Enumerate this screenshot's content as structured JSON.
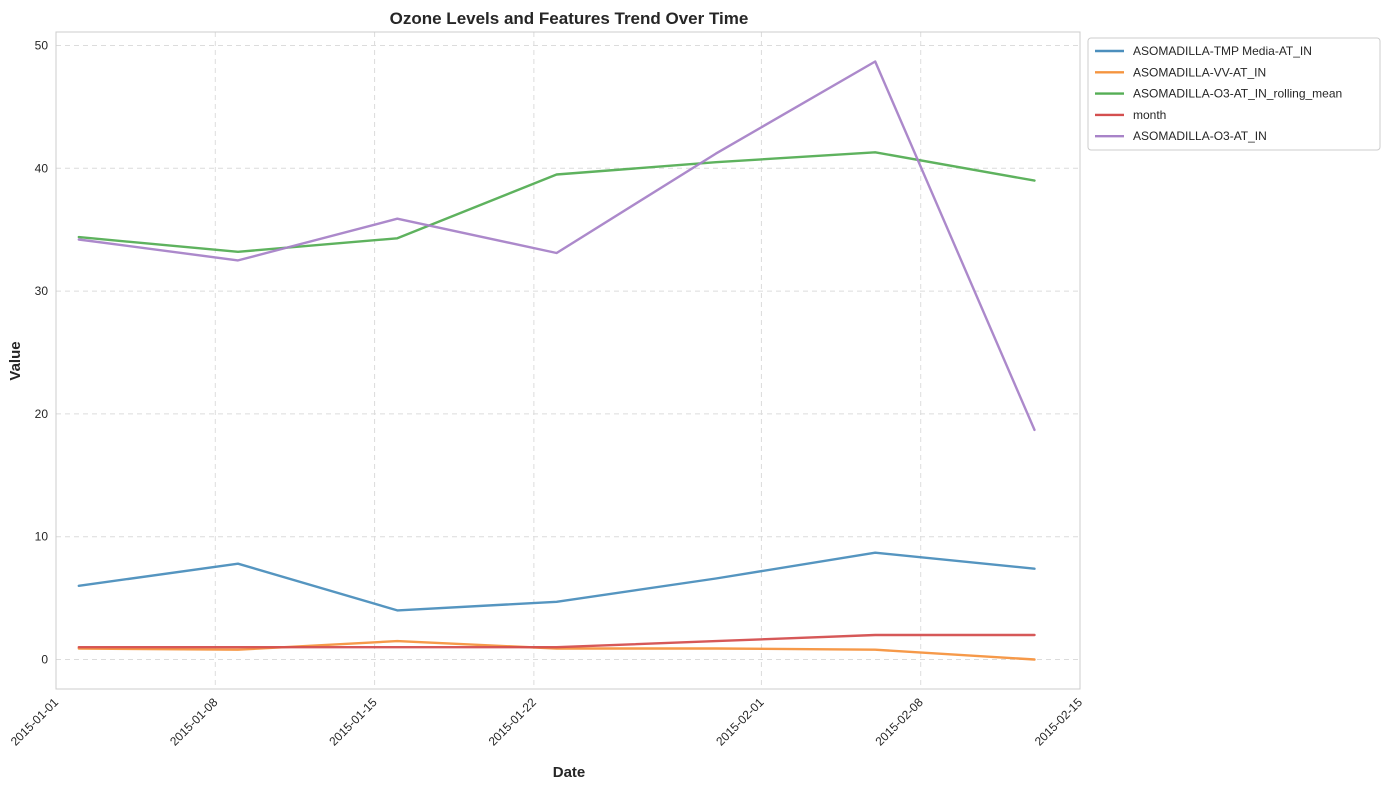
{
  "chart_data": {
    "type": "line",
    "title": "Ozone Levels and Features Trend Over Time",
    "xlabel": "Date",
    "ylabel": "Value",
    "x": [
      "2015-01-02",
      "2015-01-09",
      "2015-01-16",
      "2015-01-23",
      "2015-01-30",
      "2015-02-06",
      "2015-02-13"
    ],
    "xlim": [
      "2015-01-01",
      "2015-02-15"
    ],
    "xticks": [
      "2015-01-01",
      "2015-01-08",
      "2015-01-15",
      "2015-01-22",
      "2015-02-01",
      "2015-02-08",
      "2015-02-15"
    ],
    "ylim": [
      -2.4,
      51.1
    ],
    "yticks": [
      0,
      10,
      20,
      30,
      40,
      50
    ],
    "grid": true,
    "legend_position": "outside-top-right",
    "series": [
      {
        "name": "ASOMADILLA-TMP Media-AT_IN",
        "color": "#4c8fbd",
        "values": [
          6.0,
          7.8,
          4.0,
          4.7,
          6.6,
          8.7,
          7.4
        ]
      },
      {
        "name": "ASOMADILLA-VV-AT_IN",
        "color": "#f5943f",
        "values": [
          0.9,
          0.8,
          1.5,
          0.9,
          0.9,
          0.8,
          0.0
        ]
      },
      {
        "name": "ASOMADILLA-O3-AT_IN_rolling_mean",
        "color": "#55ae55",
        "values": [
          34.4,
          33.2,
          34.3,
          39.5,
          40.5,
          41.3,
          39.0
        ]
      },
      {
        "name": "month",
        "color": "#d44f4f",
        "values": [
          1,
          1,
          1,
          1,
          1.5,
          2,
          2
        ]
      },
      {
        "name": "ASOMADILLA-O3-AT_IN",
        "color": "#a883c8",
        "values": [
          34.2,
          32.5,
          35.9,
          33.1,
          41.2,
          48.7,
          18.7
        ]
      }
    ]
  }
}
